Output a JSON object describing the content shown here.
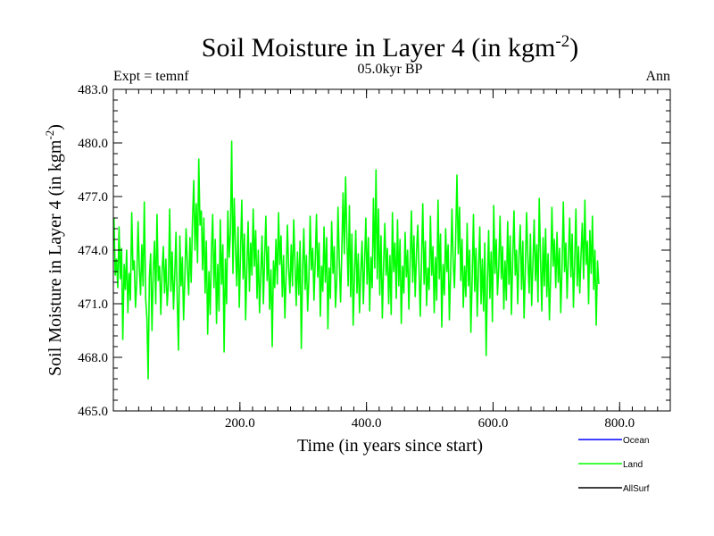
{
  "chart_data": {
    "type": "line",
    "title": "Soil Moisture in Layer 4 (in kgm",
    "title_superscript": "-2",
    "title_close": ")",
    "subtitle": "05.0kyr BP",
    "left_label": "Expt = temnf",
    "right_label": "Ann",
    "xlabel": "Time (in years since start)",
    "ylabel": "Soil Moisture in Layer 4 (in kgm",
    "ylabel_superscript": "-2",
    "ylabel_close": ")",
    "xlim": [
      0,
      880
    ],
    "ylim": [
      465,
      483
    ],
    "x_ticks": [
      200,
      400,
      600,
      800
    ],
    "x_tick_labels": [
      "200.0",
      "400.0",
      "600.0",
      "800.0"
    ],
    "y_ticks": [
      465,
      468,
      471,
      474,
      477,
      480,
      483
    ],
    "y_tick_labels": [
      "465.0",
      "468.0",
      "471.0",
      "474.0",
      "477.0",
      "480.0",
      "483.0"
    ],
    "legend": [
      {
        "name": "Ocean",
        "color": "#0000ff"
      },
      {
        "name": "Land",
        "color": "#00ff00"
      },
      {
        "name": "AllSurf",
        "color": "#000000"
      }
    ],
    "series": [
      {
        "name": "Land",
        "color": "#00ff00",
        "x_start": 1,
        "x_step": 2,
        "values": [
          475.8,
          472.6,
          473.5,
          471.9,
          475.3,
          472.4,
          474.1,
          469.0,
          473.2,
          471.8,
          474.0,
          470.5,
          472.7,
          471.2,
          476.1,
          472.9,
          473.4,
          470.8,
          472.2,
          475.6,
          473.0,
          471.5,
          474.3,
          472.0,
          476.7,
          471.3,
          470.2,
          466.8,
          472.5,
          473.8,
          469.5,
          472.9,
          474.5,
          471.0,
          476.0,
          472.3,
          473.1,
          470.4,
          472.8,
          474.2,
          471.6,
          473.5,
          470.9,
          472.1,
          476.3,
          471.7,
          473.9,
          470.7,
          472.6,
          475.0,
          471.2,
          468.4,
          474.8,
          472.0,
          473.6,
          470.1,
          472.4,
          475.2,
          473.0,
          471.5,
          474.7,
          472.2,
          475.5,
          477.9,
          474.0,
          476.6,
          473.3,
          479.1,
          475.4,
          476.2,
          472.9,
          475.8,
          471.6,
          474.5,
          469.3,
          472.8,
          470.4,
          473.9,
          476.0,
          471.9,
          474.6,
          469.9,
          473.2,
          470.6,
          475.7,
          472.1,
          474.3,
          468.3,
          473.5,
          471.0,
          476.2,
          473.6,
          475.0,
          480.1,
          472.7,
          476.9,
          474.1,
          472.0,
          475.3,
          470.8,
          473.8,
          476.8,
          472.4,
          474.9,
          470.1,
          473.0,
          475.6,
          471.7,
          474.4,
          472.6,
          476.3,
          473.1,
          475.1,
          471.3,
          474.0,
          470.5,
          472.7,
          474.8,
          471.0,
          473.6,
          475.9,
          472.3,
          474.2,
          470.7,
          472.9,
          468.6,
          473.4,
          471.9,
          474.6,
          472.1,
          476.1,
          473.2,
          474.8,
          471.4,
          473.7,
          470.2,
          472.6,
          475.4,
          473.0,
          471.6,
          474.3,
          472.0,
          475.7,
          473.3,
          470.9,
          473.9,
          471.5,
          474.5,
          468.5,
          472.8,
          475.2,
          471.8,
          473.7,
          470.6,
          472.4,
          475.9,
          472.9,
          474.1,
          471.2,
          473.4,
          476.0,
          472.5,
          474.4,
          470.3,
          473.1,
          471.7,
          475.3,
          472.2,
          474.7,
          469.6,
          473.0,
          471.3,
          475.6,
          472.7,
          474.2,
          470.8,
          472.3,
          476.4,
          473.5,
          471.1,
          474.0,
          477.2,
          473.8,
          478.1,
          474.6,
          472.0,
          476.5,
          471.4,
          474.9,
          469.8,
          472.6,
          475.1,
          471.6,
          473.8,
          470.5,
          472.9,
          474.5,
          471.0,
          473.3,
          475.8,
          472.1,
          474.7,
          470.6,
          473.6,
          471.9,
          476.9,
          473.0,
          478.5,
          472.4,
          476.3,
          471.5,
          474.8,
          470.2,
          473.2,
          475.5,
          472.6,
          474.1,
          471.0,
          473.7,
          470.4,
          476.1,
          472.8,
          474.4,
          471.3,
          475.7,
          472.0,
          474.6,
          469.9,
          473.1,
          471.6,
          475.0,
          472.5,
          474.0,
          470.7,
          473.5,
          476.2,
          472.2,
          474.8,
          471.4,
          473.9,
          475.4,
          472.9,
          470.3,
          473.4,
          476.6,
          472.1,
          474.5,
          470.9,
          473.0,
          471.8,
          475.9,
          472.6,
          474.2,
          470.5,
          473.6,
          471.2,
          476.8,
          472.4,
          474.9,
          469.7,
          473.2,
          471.5,
          475.2,
          472.8,
          474.3,
          470.1,
          472.7,
          476.3,
          473.3,
          471.9,
          474.7,
          478.2,
          473.8,
          476.4,
          472.3,
          474.6,
          470.8,
          473.1,
          471.4,
          475.5,
          472.0,
          474.0,
          469.4,
          472.5,
          476.0,
          471.7,
          474.1,
          470.3,
          472.9,
          475.3,
          471.0,
          473.5,
          470.6,
          474.4,
          468.1,
          472.2,
          475.1,
          471.3,
          473.9,
          470.0,
          476.5,
          472.7,
          474.6,
          471.5,
          473.0,
          475.9,
          472.4,
          474.2,
          470.7,
          473.4,
          471.2,
          475.6,
          472.1,
          474.8,
          470.4,
          473.3,
          476.2,
          472.6,
          474.0,
          471.0,
          473.7,
          475.4,
          471.8,
          474.5,
          470.2,
          472.9,
          476.1,
          473.5,
          471.6,
          474.9,
          470.9,
          473.2,
          475.7,
          472.3,
          474.3,
          471.1,
          476.9,
          473.6,
          470.6,
          474.7,
          472.0,
          475.2,
          471.4,
          473.8,
          470.1,
          472.5,
          476.4,
          473.1,
          474.6,
          471.9,
          475.0,
          472.2,
          474.1,
          470.5,
          473.0,
          476.7,
          472.8,
          474.4,
          471.3,
          473.5,
          475.8,
          472.5,
          474.9,
          470.8,
          473.3,
          476.3,
          472.0,
          474.2,
          471.6,
          473.7,
          475.5,
          472.4,
          476.8,
          473.2,
          474.5,
          471.0,
          475.1,
          472.7,
          475.9,
          471.8,
          474.0,
          469.8,
          473.4,
          472.1
        ]
      }
    ]
  }
}
